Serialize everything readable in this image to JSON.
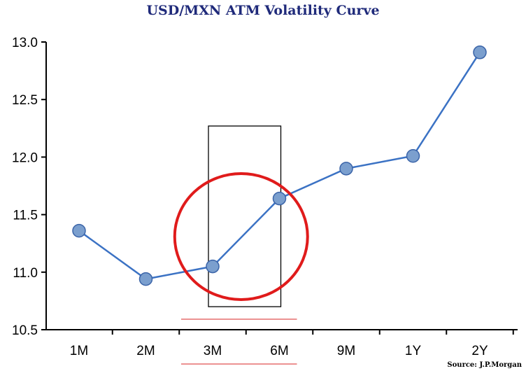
{
  "title": "USD/MXN ATM Volatility Curve",
  "source": "Source: J.P.Morgan",
  "colors": {
    "line": "#3b72c4",
    "marker_fill": "#7b9fce",
    "marker_stroke": "#3b64a8",
    "circle": "#e01b1b",
    "rect": "#000000",
    "underline": "#e05050",
    "title": "#1f2a7a"
  },
  "chart_data": {
    "type": "line",
    "title": "USD/MXN ATM Volatility Curve",
    "categories": [
      "1M",
      "2M",
      "3M",
      "6M",
      "9M",
      "1Y",
      "2Y"
    ],
    "values": [
      11.36,
      10.94,
      11.05,
      11.64,
      11.9,
      12.01,
      12.91
    ],
    "ylim": [
      10.5,
      13.0
    ],
    "yticks": [
      "10.5",
      "11.0",
      "11.5",
      "12.0",
      "12.5",
      "13.0"
    ],
    "xlabel": "",
    "ylabel": "",
    "grid": false,
    "legend": "none",
    "annotations": {
      "highlight_rect": {
        "from": "3M",
        "to": "6M",
        "y_range": [
          10.7,
          12.27
        ]
      },
      "highlight_circle": {
        "around": [
          "3M",
          "6M"
        ]
      },
      "underline": {
        "categories": [
          "3M",
          "6M"
        ]
      }
    },
    "source": "Source: J.P.Morgan"
  }
}
